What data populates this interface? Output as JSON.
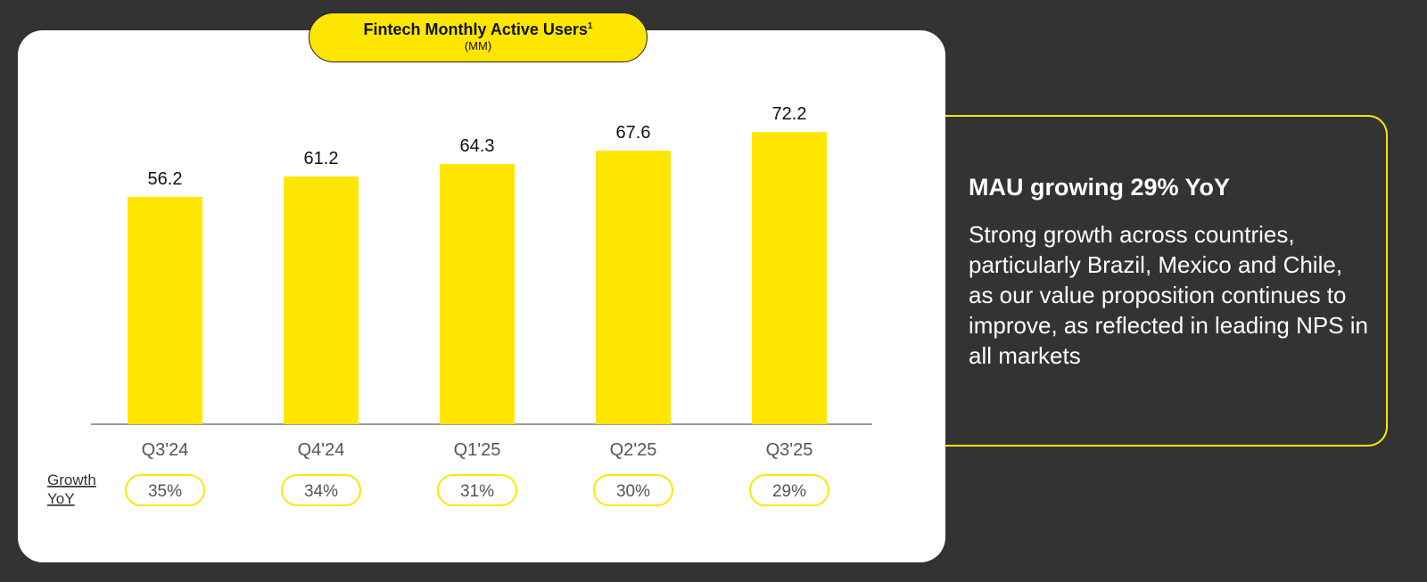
{
  "chart_data": {
    "type": "bar",
    "title": "Fintech Monthly Active Users",
    "title_footnote": "1",
    "subtitle": "(MM)",
    "categories": [
      "Q3'24",
      "Q4'24",
      "Q1'25",
      "Q2'25",
      "Q3'25"
    ],
    "values": [
      56.2,
      61.2,
      64.3,
      67.6,
      72.2
    ],
    "value_labels": [
      "56.2",
      "61.2",
      "64.3",
      "67.6",
      "72.2"
    ],
    "growth_label": "Growth YoY",
    "growth_yoy": [
      "35%",
      "34%",
      "31%",
      "30%",
      "29%"
    ],
    "ylim": [
      0,
      80
    ],
    "bar_color": "#FFE600",
    "grid": false,
    "legend": "none"
  },
  "info": {
    "heading": "MAU growing 29% YoY",
    "body": "Strong growth across countries, particularly Brazil, Mexico and Chile, as our value proposition continues to improve, as reflected in leading NPS in all markets"
  },
  "colors": {
    "background": "#333333",
    "card": "#FFFFFF",
    "accent": "#FFE600",
    "text_dark": "#111111",
    "text_muted": "#555555"
  }
}
